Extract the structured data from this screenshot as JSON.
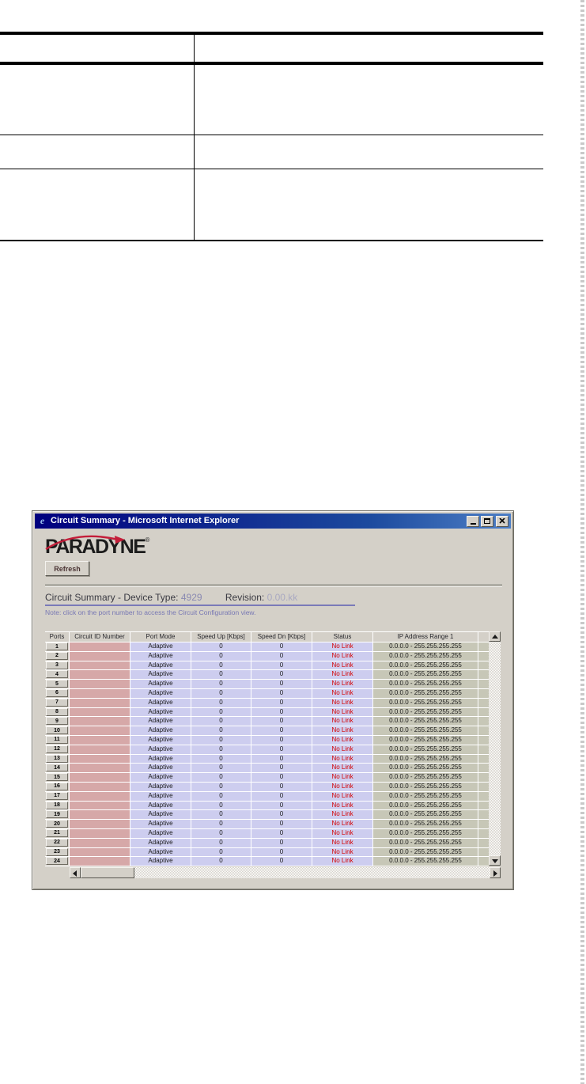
{
  "colors": {
    "titlebar_left": "#00007e",
    "titlebar_right": "#4d7fc6",
    "chrome_gray": "#d4d0c8",
    "cell_pink": "#d6a8a8",
    "cell_lavender": "#cdcdef",
    "cell_olive": "#c7c7b7",
    "status_red": "#d40000",
    "accent_purple": "#7a7ab8",
    "logo_red": "#c41e3a"
  },
  "icons": {
    "ie_logo": "e",
    "minimize": "minimize-glyph",
    "maximize": "maximize-glyph",
    "close": "close-glyph",
    "scroll_up": "triangle-up",
    "scroll_down": "triangle-down",
    "scroll_left": "triangle-left",
    "scroll_right": "triangle-right"
  },
  "titlebar": {
    "title": "Circuit Summary - Microsoft Internet Explorer"
  },
  "content": {
    "logo_text": "PARADYNE",
    "logo_reg_mark": "®",
    "refresh_button": "Refresh",
    "heading": {
      "title_label": "Circuit Summary - Device Type:",
      "device_type": "4929",
      "revision_label": "Revision:",
      "revision_value": "0.00.kk"
    },
    "note": "Note: click on the port number to access the Circuit Configuration view."
  },
  "table": {
    "headers": [
      "Ports",
      "Circuit ID Number",
      "Port Mode",
      "Speed Up [Kbps]",
      "Speed Dn [Kbps]",
      "Status",
      "IP Address Range 1"
    ],
    "rows": [
      {
        "port": "1",
        "circuit_id": "",
        "port_mode": "Adaptive",
        "speed_up": "0",
        "speed_dn": "0",
        "status": "No Link",
        "ip_range": "0.0.0.0 - 255.255.255.255"
      },
      {
        "port": "2",
        "circuit_id": "",
        "port_mode": "Adaptive",
        "speed_up": "0",
        "speed_dn": "0",
        "status": "No Link",
        "ip_range": "0.0.0.0 - 255.255.255.255"
      },
      {
        "port": "3",
        "circuit_id": "",
        "port_mode": "Adaptive",
        "speed_up": "0",
        "speed_dn": "0",
        "status": "No Link",
        "ip_range": "0.0.0.0 - 255.255.255.255"
      },
      {
        "port": "4",
        "circuit_id": "",
        "port_mode": "Adaptive",
        "speed_up": "0",
        "speed_dn": "0",
        "status": "No Link",
        "ip_range": "0.0.0.0 - 255.255.255.255"
      },
      {
        "port": "5",
        "circuit_id": "",
        "port_mode": "Adaptive",
        "speed_up": "0",
        "speed_dn": "0",
        "status": "No Link",
        "ip_range": "0.0.0.0 - 255.255.255.255"
      },
      {
        "port": "6",
        "circuit_id": "",
        "port_mode": "Adaptive",
        "speed_up": "0",
        "speed_dn": "0",
        "status": "No Link",
        "ip_range": "0.0.0.0 - 255.255.255.255"
      },
      {
        "port": "7",
        "circuit_id": "",
        "port_mode": "Adaptive",
        "speed_up": "0",
        "speed_dn": "0",
        "status": "No Link",
        "ip_range": "0.0.0.0 - 255.255.255.255"
      },
      {
        "port": "8",
        "circuit_id": "",
        "port_mode": "Adaptive",
        "speed_up": "0",
        "speed_dn": "0",
        "status": "No Link",
        "ip_range": "0.0.0.0 - 255.255.255.255"
      },
      {
        "port": "9",
        "circuit_id": "",
        "port_mode": "Adaptive",
        "speed_up": "0",
        "speed_dn": "0",
        "status": "No Link",
        "ip_range": "0.0.0.0 - 255.255.255.255"
      },
      {
        "port": "10",
        "circuit_id": "",
        "port_mode": "Adaptive",
        "speed_up": "0",
        "speed_dn": "0",
        "status": "No Link",
        "ip_range": "0.0.0.0 - 255.255.255.255"
      },
      {
        "port": "11",
        "circuit_id": "",
        "port_mode": "Adaptive",
        "speed_up": "0",
        "speed_dn": "0",
        "status": "No Link",
        "ip_range": "0.0.0.0 - 255.255.255.255"
      },
      {
        "port": "12",
        "circuit_id": "",
        "port_mode": "Adaptive",
        "speed_up": "0",
        "speed_dn": "0",
        "status": "No Link",
        "ip_range": "0.0.0.0 - 255.255.255.255"
      },
      {
        "port": "13",
        "circuit_id": "",
        "port_mode": "Adaptive",
        "speed_up": "0",
        "speed_dn": "0",
        "status": "No Link",
        "ip_range": "0.0.0.0 - 255.255.255.255"
      },
      {
        "port": "14",
        "circuit_id": "",
        "port_mode": "Adaptive",
        "speed_up": "0",
        "speed_dn": "0",
        "status": "No Link",
        "ip_range": "0.0.0.0 - 255.255.255.255"
      },
      {
        "port": "15",
        "circuit_id": "",
        "port_mode": "Adaptive",
        "speed_up": "0",
        "speed_dn": "0",
        "status": "No Link",
        "ip_range": "0.0.0.0 - 255.255.255.255"
      },
      {
        "port": "16",
        "circuit_id": "",
        "port_mode": "Adaptive",
        "speed_up": "0",
        "speed_dn": "0",
        "status": "No Link",
        "ip_range": "0.0.0.0 - 255.255.255.255"
      },
      {
        "port": "17",
        "circuit_id": "",
        "port_mode": "Adaptive",
        "speed_up": "0",
        "speed_dn": "0",
        "status": "No Link",
        "ip_range": "0.0.0.0 - 255.255.255.255"
      },
      {
        "port": "18",
        "circuit_id": "",
        "port_mode": "Adaptive",
        "speed_up": "0",
        "speed_dn": "0",
        "status": "No Link",
        "ip_range": "0.0.0.0 - 255.255.255.255"
      },
      {
        "port": "19",
        "circuit_id": "",
        "port_mode": "Adaptive",
        "speed_up": "0",
        "speed_dn": "0",
        "status": "No Link",
        "ip_range": "0.0.0.0 - 255.255.255.255"
      },
      {
        "port": "20",
        "circuit_id": "",
        "port_mode": "Adaptive",
        "speed_up": "0",
        "speed_dn": "0",
        "status": "No Link",
        "ip_range": "0.0.0.0 - 255.255.255.255"
      },
      {
        "port": "21",
        "circuit_id": "",
        "port_mode": "Adaptive",
        "speed_up": "0",
        "speed_dn": "0",
        "status": "No Link",
        "ip_range": "0.0.0.0 - 255.255.255.255"
      },
      {
        "port": "22",
        "circuit_id": "",
        "port_mode": "Adaptive",
        "speed_up": "0",
        "speed_dn": "0",
        "status": "No Link",
        "ip_range": "0.0.0.0 - 255.255.255.255"
      },
      {
        "port": "23",
        "circuit_id": "",
        "port_mode": "Adaptive",
        "speed_up": "0",
        "speed_dn": "0",
        "status": "No Link",
        "ip_range": "0.0.0.0 - 255.255.255.255"
      },
      {
        "port": "24",
        "circuit_id": "",
        "port_mode": "Adaptive",
        "speed_up": "0",
        "speed_dn": "0",
        "status": "No Link",
        "ip_range": "0.0.0.0 - 255.255.255.255"
      }
    ]
  }
}
